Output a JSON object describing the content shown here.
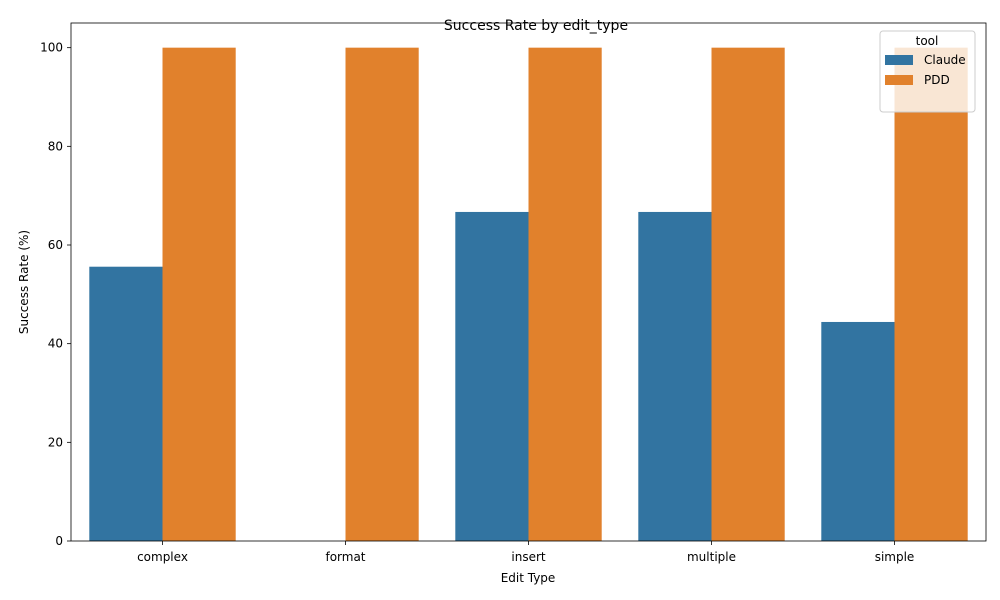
{
  "chart_data": {
    "type": "bar",
    "title": "Success Rate by edit_type",
    "xlabel": "Edit Type",
    "ylabel": "Success Rate (%)",
    "categories": [
      "complex",
      "format",
      "insert",
      "multiple",
      "simple"
    ],
    "series": [
      {
        "name": "Claude",
        "color": "#3274a1",
        "values": [
          55.6,
          0,
          66.7,
          66.7,
          44.4
        ]
      },
      {
        "name": "PDD",
        "color": "#e1812c",
        "values": [
          100,
          100,
          100,
          100,
          100
        ]
      }
    ],
    "ylim": [
      0,
      105
    ],
    "yticks": [
      "0",
      "20",
      "40",
      "60",
      "80",
      "100"
    ],
    "grid": false,
    "legend": {
      "title": "tool",
      "placement": "top-right"
    }
  }
}
